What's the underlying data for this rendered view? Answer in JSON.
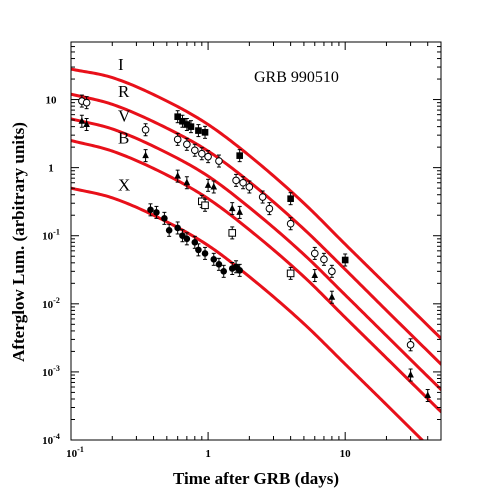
{
  "chart_data": {
    "type": "scatter",
    "title": "",
    "annotation": "GRB 990510",
    "xlabel": "Time after GRB (days)",
    "ylabel": "Afterglow Lum. (arbitrary units)",
    "xscale": "log",
    "yscale": "log",
    "xlim": [
      0.1,
      50
    ],
    "ylim": [
      0.0001,
      70
    ],
    "grid": false,
    "x_ticks": [
      {
        "base": "10",
        "exp": "-1",
        "value": 0.1
      },
      {
        "base": "1",
        "exp": "",
        "value": 1
      },
      {
        "base": "10",
        "exp": "",
        "value": 10
      }
    ],
    "y_ticks": [
      {
        "base": "10",
        "exp": "",
        "value": 10
      },
      {
        "base": "1",
        "exp": "",
        "value": 1
      },
      {
        "base": "10",
        "exp": "-1",
        "value": 0.1
      },
      {
        "base": "10",
        "exp": "-2",
        "value": 0.01
      },
      {
        "base": "10",
        "exp": "-3",
        "value": 0.001
      },
      {
        "base": "10",
        "exp": "-4",
        "value": 0.0001
      }
    ],
    "curve_color": "#e8101a",
    "series": [
      {
        "name": "I",
        "marker": "filled-square",
        "curve": [
          [
            0.1,
            28
          ],
          [
            0.2,
            21
          ],
          [
            0.5,
            9.5
          ],
          [
            1,
            4.3
          ],
          [
            2,
            1.5
          ],
          [
            5,
            0.3
          ],
          [
            10,
            0.075
          ],
          [
            20,
            0.019
          ],
          [
            50,
            0.0031
          ]
        ],
        "points": [
          [
            0.6,
            5.6
          ],
          [
            0.65,
            4.8
          ],
          [
            0.7,
            4.3
          ],
          [
            0.75,
            4.0
          ],
          [
            0.85,
            3.5
          ],
          [
            0.95,
            3.3
          ],
          [
            1.7,
            1.5
          ],
          [
            4.0,
            0.35
          ],
          [
            10,
            0.044
          ]
        ]
      },
      {
        "name": "R",
        "marker": "open-circle",
        "curve": [
          [
            0.1,
            12
          ],
          [
            0.2,
            8.5
          ],
          [
            0.5,
            3.8
          ],
          [
            1,
            1.75
          ],
          [
            2,
            0.62
          ],
          [
            5,
            0.125
          ],
          [
            10,
            0.032
          ],
          [
            20,
            0.008
          ],
          [
            50,
            0.0013
          ]
        ],
        "points": [
          [
            0.12,
            9.5
          ],
          [
            0.13,
            9.0
          ],
          [
            0.35,
            3.6
          ],
          [
            0.6,
            2.6
          ],
          [
            0.7,
            2.2
          ],
          [
            0.8,
            1.8
          ],
          [
            0.9,
            1.6
          ],
          [
            1.0,
            1.45
          ],
          [
            1.2,
            1.25
          ],
          [
            1.6,
            0.65
          ],
          [
            1.8,
            0.6
          ],
          [
            2.0,
            0.52
          ],
          [
            2.5,
            0.37
          ],
          [
            2.8,
            0.25
          ],
          [
            4.0,
            0.15
          ],
          [
            6.0,
            0.055
          ],
          [
            7.0,
            0.045
          ],
          [
            8.0,
            0.03
          ],
          [
            30,
            0.0025
          ]
        ]
      },
      {
        "name": "V",
        "marker": "filled-triangle",
        "curve": [
          [
            0.1,
            5.2
          ],
          [
            0.2,
            3.7
          ],
          [
            0.5,
            1.65
          ],
          [
            1,
            0.75
          ],
          [
            2,
            0.26
          ],
          [
            5,
            0.053
          ],
          [
            10,
            0.0135
          ],
          [
            20,
            0.0034
          ],
          [
            50,
            0.00055
          ]
        ],
        "points": [
          [
            0.12,
            4.8
          ],
          [
            0.13,
            4.3
          ],
          [
            0.35,
            1.5
          ],
          [
            0.6,
            0.75
          ],
          [
            0.7,
            0.6
          ],
          [
            1.0,
            0.55
          ],
          [
            1.1,
            0.52
          ],
          [
            1.5,
            0.25
          ],
          [
            1.7,
            0.22
          ],
          [
            6.0,
            0.026
          ],
          [
            8.0,
            0.0125
          ],
          [
            30,
            0.0009
          ],
          [
            40,
            0.00045
          ]
        ]
      },
      {
        "name": "B",
        "marker": "open-square",
        "curve": [
          [
            0.1,
            2.5
          ],
          [
            0.2,
            1.75
          ],
          [
            0.5,
            0.78
          ],
          [
            1,
            0.35
          ],
          [
            2,
            0.122
          ],
          [
            5,
            0.025
          ],
          [
            10,
            0.0063
          ],
          [
            20,
            0.0016
          ],
          [
            50,
            0.00026
          ]
        ],
        "points": [
          [
            0.9,
            0.32
          ],
          [
            0.95,
            0.28
          ],
          [
            1.5,
            0.11
          ],
          [
            4.0,
            0.028
          ]
        ]
      },
      {
        "name": "X",
        "marker": "filled-circle",
        "curve": [
          [
            0.1,
            0.5
          ],
          [
            0.2,
            0.36
          ],
          [
            0.5,
            0.16
          ],
          [
            1,
            0.072
          ],
          [
            2,
            0.025
          ],
          [
            5,
            0.0051
          ],
          [
            10,
            0.0013
          ],
          [
            20,
            0.00033
          ],
          [
            50,
            5.3e-05
          ]
        ],
        "points": [
          [
            0.38,
            0.24
          ],
          [
            0.42,
            0.22
          ],
          [
            0.48,
            0.18
          ],
          [
            0.52,
            0.12
          ],
          [
            0.6,
            0.13
          ],
          [
            0.65,
            0.1
          ],
          [
            0.7,
            0.09
          ],
          [
            0.8,
            0.08
          ],
          [
            0.85,
            0.062
          ],
          [
            0.95,
            0.055
          ],
          [
            1.1,
            0.045
          ],
          [
            1.2,
            0.038
          ],
          [
            1.3,
            0.03
          ],
          [
            1.5,
            0.033
          ],
          [
            1.6,
            0.035
          ],
          [
            1.7,
            0.031
          ]
        ]
      }
    ]
  }
}
